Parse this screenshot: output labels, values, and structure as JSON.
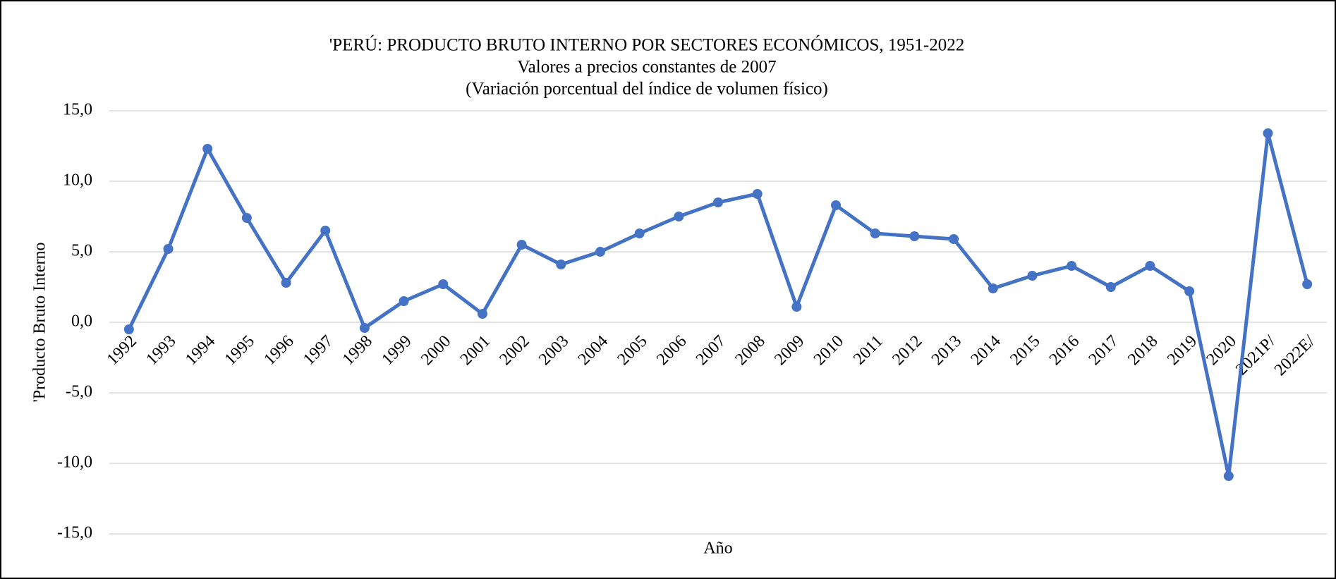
{
  "chart_data": {
    "type": "line",
    "title": "'PERÚ: PRODUCTO BRUTO INTERNO POR SECTORES ECONÓMICOS, 1951-2022",
    "subtitle": [
      "Valores a precios constantes de 2007",
      "(Variación porcentual del índice de volumen físico)"
    ],
    "x_label": "Año",
    "y_label": "'Producto  Bruto Interno",
    "categories": [
      "1992",
      "1993",
      "1994",
      "1995",
      "1996",
      "1997",
      "1998",
      "1999",
      "2000",
      "2001",
      "2002",
      "2003",
      "2004",
      "2005",
      "2006",
      "2007",
      "2008",
      "2009",
      "2010",
      "2011",
      "2012",
      "2013",
      "2014",
      "2015",
      "2016",
      "2017",
      "2018",
      "2019",
      "2020",
      "2021P/",
      "2022E/"
    ],
    "series": [
      {
        "name": "Producto Bruto Interno",
        "color": "#4472c4",
        "values": [
          -0.5,
          5.2,
          12.3,
          7.4,
          2.8,
          6.5,
          -0.4,
          1.5,
          2.7,
          0.6,
          5.5,
          4.1,
          5.0,
          6.3,
          7.5,
          8.5,
          9.1,
          1.1,
          8.3,
          6.3,
          6.1,
          5.9,
          2.4,
          3.3,
          4.0,
          2.5,
          4.0,
          2.2,
          -10.9,
          13.4,
          2.7
        ]
      }
    ],
    "ylim": [
      -15,
      15
    ],
    "yticks": [
      {
        "value": -15,
        "label": "-15,0"
      },
      {
        "value": -10,
        "label": "-10,0"
      },
      {
        "value": -5,
        "label": "-5,0"
      },
      {
        "value": 0,
        "label": "0,0"
      },
      {
        "value": 5,
        "label": "5,0"
      },
      {
        "value": 10,
        "label": "10,0"
      },
      {
        "value": 15,
        "label": "15,0"
      }
    ],
    "grid": true
  }
}
